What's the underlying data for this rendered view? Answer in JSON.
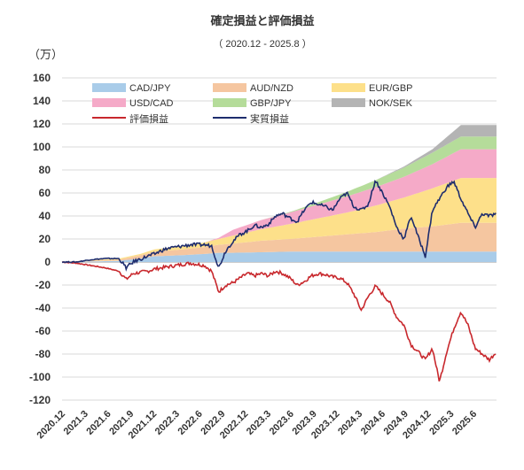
{
  "chart_data": {
    "type": "area",
    "title": "確定損益と評価損益",
    "subtitle": "（ 2020.12 - 2025.8 ）",
    "unit_label": "（万）",
    "ylim": [
      -120,
      160
    ],
    "yticks": [
      160,
      140,
      120,
      100,
      80,
      60,
      40,
      20,
      0,
      -20,
      -40,
      -60,
      -80,
      -100,
      -120
    ],
    "x_tick_labels": [
      "2020.12",
      "2021.3",
      "2021.6",
      "2021.9",
      "2021.12",
      "2022.3",
      "2022.6",
      "2022.9",
      "2022.12",
      "2023.3",
      "2023.6",
      "2023.9",
      "2023.12",
      "2024.3",
      "2024.6",
      "2024.9",
      "2024.12",
      "2025.3",
      "2025.6"
    ],
    "x_months": [
      0,
      56
    ],
    "legend_position": "top",
    "stacked_series": [
      {
        "name": "CAD/JPY",
        "color": "#a9cce9",
        "points": [
          [
            0,
            0
          ],
          [
            4,
            0.5
          ],
          [
            8,
            1
          ],
          [
            11,
            3
          ],
          [
            13,
            5
          ],
          [
            17,
            6
          ],
          [
            20,
            7
          ],
          [
            22,
            8
          ],
          [
            24,
            8
          ],
          [
            28,
            8.5
          ],
          [
            32,
            9
          ],
          [
            36,
            9
          ],
          [
            40,
            9
          ],
          [
            44,
            9
          ],
          [
            48,
            9
          ],
          [
            52,
            9
          ],
          [
            56,
            9
          ]
        ]
      },
      {
        "name": "AUD/NZD",
        "color": "#f5c6a0",
        "points": [
          [
            0,
            0
          ],
          [
            4,
            0.5
          ],
          [
            8,
            1
          ],
          [
            11,
            3
          ],
          [
            13,
            4
          ],
          [
            17,
            5
          ],
          [
            20,
            6
          ],
          [
            22,
            7
          ],
          [
            24,
            8
          ],
          [
            28,
            10
          ],
          [
            32,
            11
          ],
          [
            36,
            13
          ],
          [
            40,
            15
          ],
          [
            44,
            17
          ],
          [
            48,
            20
          ],
          [
            52,
            22
          ],
          [
            56,
            25
          ]
        ]
      },
      {
        "name": "EUR/GBP",
        "color": "#fde08a",
        "points": [
          [
            0,
            0
          ],
          [
            4,
            0.5
          ],
          [
            8,
            1
          ],
          [
            11,
            1
          ],
          [
            13,
            2
          ],
          [
            17,
            3
          ],
          [
            20,
            4
          ],
          [
            22,
            5
          ],
          [
            24,
            7
          ],
          [
            28,
            10
          ],
          [
            32,
            13
          ],
          [
            36,
            16
          ],
          [
            40,
            19
          ],
          [
            44,
            23
          ],
          [
            48,
            27
          ],
          [
            52,
            33
          ],
          [
            56,
            39
          ]
        ]
      },
      {
        "name": "USD/CAD",
        "color": "#f5aac8",
        "points": [
          [
            0,
            0
          ],
          [
            4,
            0
          ],
          [
            8,
            0
          ],
          [
            11,
            0
          ],
          [
            13,
            0
          ],
          [
            17,
            0
          ],
          [
            20,
            0
          ],
          [
            22,
            1
          ],
          [
            24,
            5
          ],
          [
            28,
            8
          ],
          [
            32,
            10
          ],
          [
            36,
            12
          ],
          [
            40,
            14
          ],
          [
            44,
            16
          ],
          [
            48,
            18
          ],
          [
            52,
            21
          ],
          [
            56,
            25
          ]
        ]
      },
      {
        "name": "GBP/JPY",
        "color": "#b5dc9a",
        "points": [
          [
            0,
            0
          ],
          [
            4,
            0
          ],
          [
            8,
            0
          ],
          [
            11,
            0
          ],
          [
            13,
            0
          ],
          [
            17,
            0
          ],
          [
            20,
            0
          ],
          [
            22,
            0
          ],
          [
            24,
            0
          ],
          [
            28,
            0
          ],
          [
            32,
            0.5
          ],
          [
            36,
            2
          ],
          [
            40,
            4
          ],
          [
            44,
            6
          ],
          [
            48,
            8
          ],
          [
            52,
            10
          ],
          [
            56,
            11
          ]
        ]
      },
      {
        "name": "NOK/SEK",
        "color": "#b4b4b4",
        "points": [
          [
            0,
            0
          ],
          [
            4,
            0
          ],
          [
            8,
            0
          ],
          [
            11,
            0
          ],
          [
            13,
            0
          ],
          [
            17,
            0
          ],
          [
            20,
            0
          ],
          [
            22,
            0
          ],
          [
            24,
            0
          ],
          [
            28,
            0
          ],
          [
            32,
            0
          ],
          [
            36,
            0
          ],
          [
            40,
            0
          ],
          [
            44,
            0
          ],
          [
            48,
            1
          ],
          [
            52,
            3
          ],
          [
            56,
            10
          ]
        ]
      }
    ],
    "line_series": [
      {
        "name": "評価損益",
        "color": "#c8282d",
        "points": [
          [
            0,
            0
          ],
          [
            2,
            -1
          ],
          [
            4,
            -3
          ],
          [
            6,
            -5
          ],
          [
            8,
            -8
          ],
          [
            9,
            -15
          ],
          [
            10,
            -10
          ],
          [
            12,
            -8
          ],
          [
            13,
            -6
          ],
          [
            14,
            -5
          ],
          [
            15,
            -4
          ],
          [
            16,
            -3
          ],
          [
            17,
            -2
          ],
          [
            18,
            -1
          ],
          [
            20,
            -3
          ],
          [
            21,
            -8
          ],
          [
            22,
            -26
          ],
          [
            23,
            -20
          ],
          [
            24,
            -18
          ],
          [
            25,
            -14
          ],
          [
            26,
            -10
          ],
          [
            27,
            -12
          ],
          [
            28,
            -10
          ],
          [
            29,
            -12
          ],
          [
            30,
            -8
          ],
          [
            31,
            -10
          ],
          [
            32,
            -14
          ],
          [
            33,
            -20
          ],
          [
            34,
            -17
          ],
          [
            35,
            -12
          ],
          [
            36,
            -10
          ],
          [
            37,
            -11
          ],
          [
            38,
            -13
          ],
          [
            39,
            -14
          ],
          [
            40,
            -18
          ],
          [
            41,
            -28
          ],
          [
            42,
            -42
          ],
          [
            43,
            -30
          ],
          [
            44,
            -21
          ],
          [
            45,
            -28
          ],
          [
            46,
            -35
          ],
          [
            47,
            -48
          ],
          [
            48,
            -55
          ],
          [
            49,
            -72
          ],
          [
            50,
            -78
          ],
          [
            51,
            -85
          ],
          [
            52,
            -75
          ],
          [
            53,
            -104
          ],
          [
            54,
            -78
          ],
          [
            55,
            -58
          ],
          [
            56,
            -43
          ],
          [
            57,
            -55
          ],
          [
            58,
            -75
          ],
          [
            59,
            -80
          ],
          [
            60,
            -85
          ],
          [
            61,
            -78
          ]
        ]
      },
      {
        "name": "実質損益",
        "color": "#1e2d6e",
        "points": [
          [
            0,
            0
          ],
          [
            2,
            0
          ],
          [
            4,
            2
          ],
          [
            6,
            3
          ],
          [
            8,
            3
          ],
          [
            9,
            -5
          ],
          [
            10,
            0
          ],
          [
            12,
            5
          ],
          [
            13,
            7
          ],
          [
            14,
            10
          ],
          [
            15,
            12
          ],
          [
            16,
            13
          ],
          [
            17,
            14
          ],
          [
            18,
            15
          ],
          [
            20,
            15
          ],
          [
            21,
            14
          ],
          [
            22,
            -5
          ],
          [
            23,
            10
          ],
          [
            24,
            18
          ],
          [
            25,
            24
          ],
          [
            26,
            27
          ],
          [
            27,
            32
          ],
          [
            28,
            30
          ],
          [
            29,
            33
          ],
          [
            30,
            40
          ],
          [
            31,
            42
          ],
          [
            32,
            38
          ],
          [
            33,
            35
          ],
          [
            34,
            45
          ],
          [
            35,
            52
          ],
          [
            36,
            50
          ],
          [
            37,
            48
          ],
          [
            38,
            45
          ],
          [
            39,
            55
          ],
          [
            40,
            60
          ],
          [
            41,
            48
          ],
          [
            42,
            45
          ],
          [
            43,
            50
          ],
          [
            44,
            71
          ],
          [
            45,
            60
          ],
          [
            46,
            48
          ],
          [
            47,
            30
          ],
          [
            48,
            20
          ],
          [
            49,
            40
          ],
          [
            50,
            22
          ],
          [
            51,
            5
          ],
          [
            52,
            45
          ],
          [
            53,
            55
          ],
          [
            54,
            65
          ],
          [
            55,
            70
          ],
          [
            56,
            55
          ],
          [
            57,
            42
          ],
          [
            58,
            30
          ],
          [
            59,
            42
          ],
          [
            60,
            40
          ],
          [
            61,
            42
          ]
        ]
      }
    ],
    "x_max": 61
  }
}
